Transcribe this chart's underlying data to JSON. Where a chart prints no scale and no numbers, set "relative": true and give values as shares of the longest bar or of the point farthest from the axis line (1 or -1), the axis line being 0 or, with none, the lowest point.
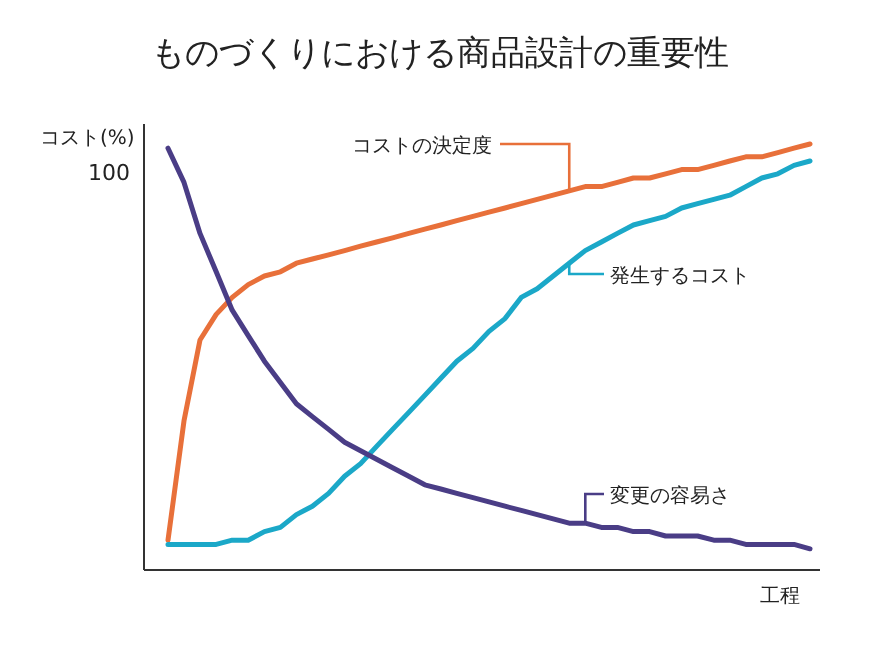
{
  "chart_data": {
    "type": "line",
    "title": "ものづくりにおける商品設計の重要性",
    "xlabel": "工程",
    "ylabel": "コスト(%)",
    "annotations": [
      "100"
    ],
    "relative": true,
    "grid": false,
    "legend": "right",
    "marker": "none",
    "line_style": "solid",
    "categories": [
      null,
      null,
      null,
      null,
      null,
      null,
      null,
      null,
      null,
      null,
      null,
      null,
      null,
      null,
      null,
      null,
      null,
      null,
      null,
      null,
      null,
      null,
      null,
      null,
      null,
      null,
      null,
      null,
      null,
      null,
      null,
      null,
      null,
      null,
      null,
      null,
      null,
      null,
      null,
      null,
      null
    ],
    "series": [
      {
        "name": "コストの決定度",
        "color": "#e8703a",
        "values": [
          0.07,
          0.35,
          0.54,
          0.6,
          0.64,
          0.67,
          0.69,
          0.7,
          0.72,
          0.73,
          0.74,
          0.75,
          0.76,
          0.77,
          0.78,
          0.79,
          0.8,
          0.81,
          0.82,
          0.83,
          0.84,
          0.85,
          0.86,
          0.87,
          0.88,
          0.89,
          0.9,
          0.9,
          0.91,
          0.92,
          0.92,
          0.93,
          0.94,
          0.94,
          0.95,
          0.96,
          0.97,
          0.97,
          0.98,
          0.99,
          1
        ]
      },
      {
        "name": "発生するコスト",
        "color": "#1ba8c8",
        "values": [
          0.06,
          0.06,
          0.06,
          0.06,
          0.07,
          0.07,
          0.09,
          0.1,
          0.13,
          0.15,
          0.18,
          0.22,
          0.25,
          0.29,
          0.33,
          0.37,
          0.41,
          0.45,
          0.49,
          0.52,
          0.56,
          0.59,
          0.64,
          0.66,
          0.69,
          0.72,
          0.75,
          0.77,
          0.79,
          0.81,
          0.82,
          0.83,
          0.85,
          0.86,
          0.87,
          0.88,
          0.9,
          0.92,
          0.93,
          0.95,
          0.96
        ]
      },
      {
        "name": "変更の容易さ",
        "color": "#4a3d86",
        "values": [
          0.99,
          0.91,
          0.79,
          0.7,
          0.61,
          0.55,
          0.49,
          0.44,
          0.39,
          0.36,
          0.33,
          0.3,
          0.28,
          0.26,
          0.24,
          0.22,
          0.2,
          0.19,
          0.18,
          0.17,
          0.16,
          0.15,
          0.14,
          0.13,
          0.12,
          0.11,
          0.11,
          0.1,
          0.1,
          0.09,
          0.09,
          0.08,
          0.08,
          0.08,
          0.07,
          0.07,
          0.06,
          0.06,
          0.06,
          0.06,
          0.05
        ]
      }
    ]
  }
}
